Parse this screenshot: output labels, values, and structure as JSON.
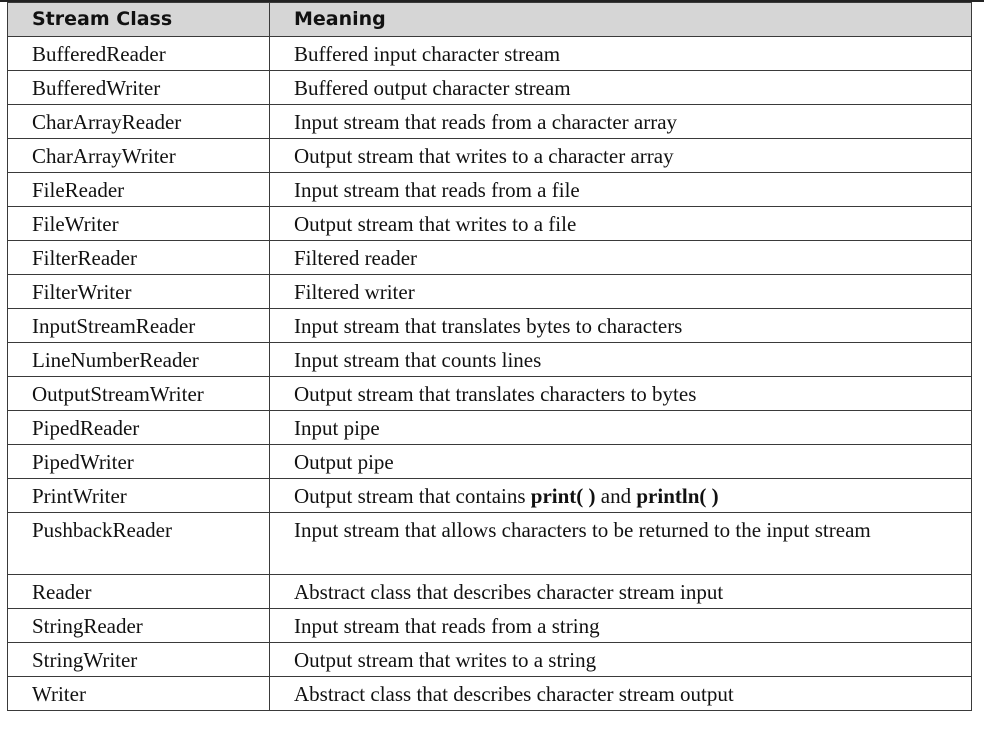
{
  "table": {
    "headers": {
      "stream_class": "Stream Class",
      "meaning": "Meaning"
    },
    "rows": [
      {
        "stream_class": "BufferedReader",
        "meaning": "Buffered input character stream"
      },
      {
        "stream_class": "BufferedWriter",
        "meaning": "Buffered output character stream"
      },
      {
        "stream_class": "CharArrayReader",
        "meaning": "Input stream that reads from a character array"
      },
      {
        "stream_class": "CharArrayWriter",
        "meaning": "Output stream that writes to a character array"
      },
      {
        "stream_class": "FileReader",
        "meaning": "Input stream that reads from a file"
      },
      {
        "stream_class": "FileWriter",
        "meaning": "Output stream that writes to a file"
      },
      {
        "stream_class": "FilterReader",
        "meaning": "Filtered reader"
      },
      {
        "stream_class": "FilterWriter",
        "meaning": "Filtered writer"
      },
      {
        "stream_class": "InputStreamReader",
        "meaning": "Input stream that translates bytes to characters"
      },
      {
        "stream_class": "LineNumberReader",
        "meaning": "Input stream that counts lines"
      },
      {
        "stream_class": "OutputStreamWriter",
        "meaning": "Output stream that translates characters to bytes"
      },
      {
        "stream_class": "PipedReader",
        "meaning": "Input pipe"
      },
      {
        "stream_class": "PipedWriter",
        "meaning": "Output pipe"
      },
      {
        "stream_class": "PrintWriter",
        "meaning_prefix": "Output stream that contains ",
        "meaning_bold_1": "print( )",
        "meaning_mid": " and ",
        "meaning_bold_2": "println( )"
      },
      {
        "stream_class": "PushbackReader",
        "meaning": "Input stream that allows characters to be returned to the input stream"
      },
      {
        "stream_class": "Reader",
        "meaning": "Abstract class that describes character stream input"
      },
      {
        "stream_class": "StringReader",
        "meaning": "Input stream that reads from a string"
      },
      {
        "stream_class": "StringWriter",
        "meaning": "Output stream that writes to a string"
      },
      {
        "stream_class": "Writer",
        "meaning": "Abstract class that describes character stream output"
      }
    ]
  },
  "colors": {
    "header_background": "#d6d6d6",
    "border": "#3a3a3a",
    "text": "#111111"
  }
}
